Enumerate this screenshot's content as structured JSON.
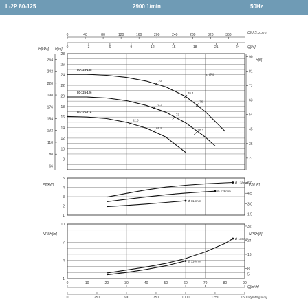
{
  "header": {
    "model": "L-2P 80-125",
    "speed": "2900 1/min",
    "frequency": "50Hz",
    "color": "#6f9bb5"
  },
  "chart_data": [
    {
      "type": "line",
      "name_id": "head",
      "x_unit": "Q[m³/h]",
      "x_ticks_m3h": [
        0,
        10,
        20,
        30,
        40,
        50,
        60,
        70,
        80,
        90
      ],
      "xlim": [
        0,
        90
      ],
      "ylabel_left_kpa": "H[kPa]",
      "ylabel_left_m": "H[m]",
      "ylabel_right_ft": "H[ft]",
      "yticks_m": [
        8,
        10,
        12,
        14,
        16,
        18,
        20,
        22,
        24,
        26,
        28
      ],
      "yticks_kpa": [
        66,
        88,
        110,
        132,
        154,
        176,
        198,
        220,
        242,
        264
      ],
      "yticks_ft": [
        27,
        36,
        45,
        54,
        63,
        72,
        81,
        90
      ],
      "ylim_m": [
        6,
        28
      ],
      "efficiency_label": "η [%]",
      "curves": [
        {
          "name": "80-125-138",
          "x": [
            0,
            10,
            20,
            30,
            40,
            50,
            60,
            70,
            80
          ],
          "y": [
            24.1,
            24.1,
            23.9,
            23.5,
            22.8,
            21.7,
            19.9,
            17.0,
            13.3
          ]
        },
        {
          "name": "80-125-126",
          "x": [
            0,
            10,
            20,
            30,
            40,
            50,
            60,
            70,
            75
          ],
          "y": [
            19.8,
            19.8,
            19.6,
            19.1,
            18.2,
            16.9,
            14.9,
            12.2,
            10.5
          ]
        },
        {
          "name": "80-125-114",
          "x": [
            0,
            10,
            20,
            30,
            40,
            50,
            60
          ],
          "y": [
            16.1,
            16.0,
            15.7,
            15.0,
            13.9,
            12.2,
            9.3
          ]
        }
      ],
      "efficiency_points": [
        {
          "label": "70",
          "x": 45,
          "y": 22.3
        },
        {
          "label": "76.1",
          "x": 60,
          "y": 19.9
        },
        {
          "label": "76",
          "x": 66,
          "y": 18.3
        },
        {
          "label": "70.3",
          "x": 44,
          "y": 17.7
        },
        {
          "label": "73",
          "x": 54,
          "y": 15.8
        },
        {
          "label": "70.3",
          "x": 65,
          "y": 12.9
        },
        {
          "label": "62.5",
          "x": 32,
          "y": 14.8
        },
        {
          "label": "69.8",
          "x": 44,
          "y": 13.3
        }
      ],
      "top_axes": {
        "us_gpm_label": "Q[U.S.g.p.m]",
        "us_gpm_ticks": [
          0,
          40,
          80,
          120,
          160,
          200,
          240,
          280,
          320,
          360
        ],
        "ls_label": "Q[l/s]",
        "ls_ticks": [
          0,
          3,
          6,
          9,
          12,
          15,
          18,
          21,
          24
        ]
      }
    },
    {
      "type": "line",
      "name_id": "power",
      "ylabel_left": "P2[kW]",
      "ylabel_right": "P2[HP]",
      "yticks_kw": [
        1,
        2,
        3,
        4,
        5
      ],
      "yticks_hp": [
        1.5,
        3.0,
        4.5,
        6.0
      ],
      "yticks_hp_labels": [
        "1,5",
        "3,0",
        "4,5",
        "6,0"
      ],
      "ylim_kw": [
        1,
        5
      ],
      "curves": [
        {
          "name": "Ø 138mm",
          "x": [
            20,
            30,
            40,
            50,
            60,
            70,
            80,
            84
          ],
          "y": [
            2.95,
            3.35,
            3.72,
            4.02,
            4.22,
            4.38,
            4.48,
            4.52
          ]
        },
        {
          "name": "Ø 126mm",
          "x": [
            20,
            30,
            40,
            50,
            60,
            70,
            75
          ],
          "y": [
            2.45,
            2.72,
            2.97,
            3.2,
            3.38,
            3.52,
            3.58
          ]
        },
        {
          "name": "Ø 114mm",
          "x": [
            20,
            30,
            40,
            50,
            60
          ],
          "y": [
            1.92,
            2.05,
            2.2,
            2.37,
            2.55
          ]
        }
      ]
    },
    {
      "type": "line",
      "name_id": "npsh",
      "ylabel_left": "NPSH[m]",
      "ylabel_right": "NPSH[ft]",
      "yticks_m": [
        1,
        4,
        7,
        10
      ],
      "yticks_ft": [
        5,
        8,
        16,
        24,
        32
      ],
      "ylim_m": [
        1,
        10
      ],
      "curves": [
        {
          "name": "Ø 138mm",
          "x": [
            20,
            30,
            40,
            50,
            60,
            70,
            80,
            84
          ],
          "y": [
            1.9,
            2.4,
            2.9,
            3.5,
            4.3,
            5.4,
            6.8,
            7.6
          ]
        },
        {
          "name": "Ø 114mm",
          "x": [
            20,
            30,
            40,
            50,
            60
          ],
          "y": [
            1.6,
            2.0,
            2.5,
            3.1,
            3.9
          ]
        }
      ],
      "bottom_axes": {
        "m3h_label": "Q[m³/h]",
        "m3h_ticks": [
          0,
          10,
          20,
          30,
          40,
          50,
          60,
          70,
          80,
          90
        ],
        "imp_label": "Q[IMP g.p.m]",
        "imp_ticks": [
          0,
          250,
          500,
          750,
          1000,
          1250,
          1500
        ],
        "imp_tick_labels": [
          "0",
          "250",
          "500",
          "750",
          "1000",
          "1250",
          "1500"
        ]
      }
    }
  ]
}
